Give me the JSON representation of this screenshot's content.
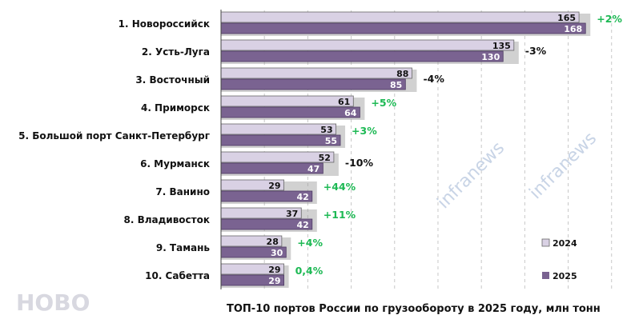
{
  "chart_data": {
    "type": "bar",
    "orientation": "horizontal",
    "title": "ТОП-10 портов России по грузообороту в 2025 году, млн тонн",
    "categories": [
      "1. Новороссийск",
      "2. Усть-Луга",
      "3. Восточный",
      "4. Приморск",
      "5. Большой порт Санкт-Петербург",
      "6. Мурманск",
      "7. Ванино",
      "8. Владивосток",
      "9. Тамань",
      "10. Сабетта"
    ],
    "series": [
      {
        "name": "2024",
        "values": [
          165,
          135,
          88,
          61,
          53,
          52,
          29,
          37,
          28,
          29
        ],
        "color": "#d9d1e4"
      },
      {
        "name": "2025",
        "values": [
          168,
          130,
          85,
          64,
          55,
          47,
          42,
          42,
          30,
          29
        ],
        "color": "#7a6391"
      }
    ],
    "changes": [
      {
        "label": "+2%",
        "positive": true
      },
      {
        "label": "-3%",
        "positive": false
      },
      {
        "label": "-4%",
        "positive": false
      },
      {
        "label": "+5%",
        "positive": true
      },
      {
        "label": "+3%",
        "positive": true
      },
      {
        "label": "-10%",
        "positive": false
      },
      {
        "label": "+44%",
        "positive": true
      },
      {
        "label": "+11%",
        "positive": true
      },
      {
        "label": "+4%",
        "positive": true
      },
      {
        "label": "0,4%",
        "positive": true
      }
    ],
    "xlim": [
      0,
      186
    ],
    "grid": "vertical dashed",
    "legend_position": "bottom-right",
    "positive_color": "#1db954",
    "negative_color": "#111111",
    "watermark": "infranews",
    "overlay_text": "НОВО"
  }
}
